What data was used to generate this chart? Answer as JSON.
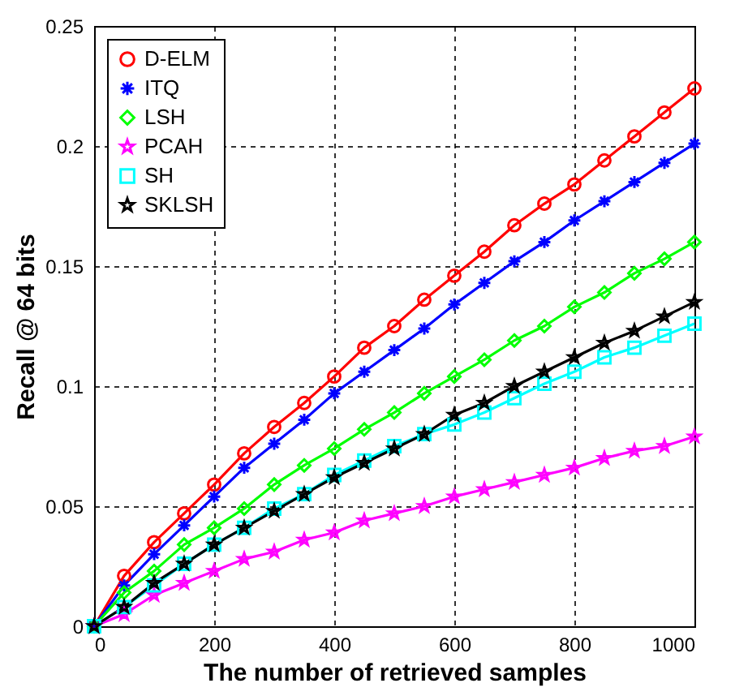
{
  "chart_data": {
    "type": "line",
    "xlabel": "The number of retrieved samples",
    "ylabel": "Recall @ 64 bits",
    "x": [
      0,
      50,
      100,
      150,
      200,
      250,
      300,
      350,
      400,
      450,
      500,
      550,
      600,
      650,
      700,
      750,
      800,
      850,
      900,
      950,
      1000
    ],
    "xlim": [
      0,
      1000
    ],
    "xticks": [
      0,
      200,
      400,
      600,
      800,
      1000
    ],
    "ylim": [
      0,
      0.25
    ],
    "yticks": [
      0,
      0.05,
      0.1,
      0.15,
      0.2,
      0.25
    ],
    "grid": true,
    "legend": "top left",
    "line_style": "solid",
    "series": [
      {
        "name": "D-ELM",
        "color": "#ff0000",
        "marker": "circle",
        "values": [
          0,
          0.021,
          0.035,
          0.047,
          0.059,
          0.072,
          0.083,
          0.093,
          0.104,
          0.116,
          0.125,
          0.136,
          0.146,
          0.156,
          0.167,
          0.176,
          0.184,
          0.194,
          0.204,
          0.214,
          0.224
        ]
      },
      {
        "name": "ITQ",
        "color": "#0000ff",
        "marker": "cross",
        "values": [
          0,
          0.017,
          0.03,
          0.042,
          0.054,
          0.066,
          0.076,
          0.086,
          0.097,
          0.106,
          0.115,
          0.124,
          0.134,
          0.143,
          0.152,
          0.16,
          0.169,
          0.177,
          0.185,
          0.193,
          0.201
        ]
      },
      {
        "name": "LSH",
        "color": "#00ff00",
        "marker": "diamond",
        "values": [
          0,
          0.014,
          0.023,
          0.034,
          0.041,
          0.049,
          0.059,
          0.067,
          0.074,
          0.082,
          0.089,
          0.097,
          0.104,
          0.111,
          0.119,
          0.125,
          0.133,
          0.139,
          0.147,
          0.153,
          0.16
        ]
      },
      {
        "name": "PCAH",
        "color": "#ff00ff",
        "marker": "star",
        "values": [
          0,
          0.005,
          0.013,
          0.018,
          0.023,
          0.028,
          0.031,
          0.036,
          0.039,
          0.044,
          0.047,
          0.05,
          0.054,
          0.057,
          0.06,
          0.063,
          0.066,
          0.07,
          0.073,
          0.075,
          0.079
        ]
      },
      {
        "name": "SH",
        "color": "#00ffff",
        "marker": "square",
        "values": [
          0,
          0.008,
          0.017,
          0.026,
          0.034,
          0.041,
          0.049,
          0.055,
          0.063,
          0.069,
          0.075,
          0.08,
          0.084,
          0.089,
          0.095,
          0.101,
          0.106,
          0.112,
          0.116,
          0.121,
          0.126
        ]
      },
      {
        "name": "SKLSH",
        "color": "#000000",
        "marker": "star",
        "values": [
          0,
          0.008,
          0.018,
          0.026,
          0.034,
          0.041,
          0.048,
          0.055,
          0.062,
          0.068,
          0.074,
          0.08,
          0.088,
          0.093,
          0.1,
          0.106,
          0.112,
          0.118,
          0.123,
          0.129,
          0.135
        ]
      }
    ]
  }
}
